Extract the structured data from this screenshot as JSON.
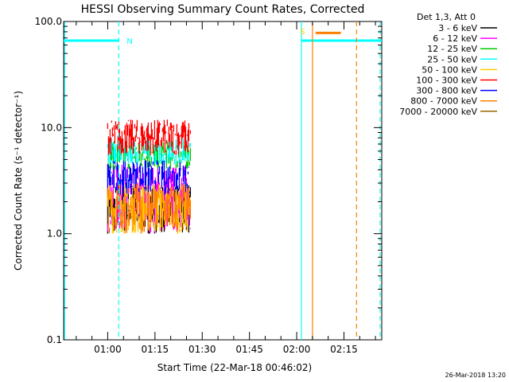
{
  "chart_data": {
    "type": "line",
    "title": "HESSI Observing Summary Count Rates, Corrected",
    "xlabel": "Start Time (22-Mar-18 00:46:02)",
    "ylabel": "Corrected Count Rate (s⁻¹ detector⁻¹)",
    "y_scale": "log",
    "ylim": [
      0.1,
      100.0
    ],
    "xlim_minutes": [
      46.0,
      147.0
    ],
    "y_ticks": [
      {
        "value": 0.1,
        "label": "0.1"
      },
      {
        "value": 1.0,
        "label": "1.0"
      },
      {
        "value": 10.0,
        "label": "10.0"
      },
      {
        "value": 100.0,
        "label": "100.0"
      }
    ],
    "x_ticks": [
      {
        "minute": 60,
        "label": "01:00"
      },
      {
        "minute": 75,
        "label": "01:15"
      },
      {
        "minute": 90,
        "label": "01:30"
      },
      {
        "minute": 105,
        "label": "01:45"
      },
      {
        "minute": 120,
        "label": "02:00"
      },
      {
        "minute": 135,
        "label": "02:15"
      }
    ],
    "legend": {
      "header": "Det 1,3, Att 0",
      "placement": "right",
      "entries": [
        {
          "label": "3 - 6 keV",
          "color": "#000000"
        },
        {
          "label": "6 - 12 keV",
          "color": "#ff00ff"
        },
        {
          "label": "12 - 25 keV",
          "color": "#00cc00"
        },
        {
          "label": "25 - 50 keV",
          "color": "#00ffff"
        },
        {
          "label": "50 - 100 keV",
          "color": "#ffcc00"
        },
        {
          "label": "100 - 300 keV",
          "color": "#ff0000"
        },
        {
          "label": "300 - 800 keV",
          "color": "#0000ff"
        },
        {
          "label": "800 - 7000 keV",
          "color": "#ff8000"
        },
        {
          "label": "7000 - 20000 keV",
          "color": "#996600"
        }
      ]
    },
    "series": [
      {
        "name": "3 - 6 keV",
        "color": "#000000",
        "x_range": [
          60.0,
          86.5
        ],
        "y_range": [
          1.0,
          3.0
        ]
      },
      {
        "name": "6 - 12 keV",
        "color": "#ff00ff",
        "x_range": [
          60.0,
          86.5
        ],
        "y_range": [
          1.0,
          4.5
        ]
      },
      {
        "name": "12 - 25 keV",
        "color": "#00cc00",
        "x_range": [
          60.0,
          86.5
        ],
        "y_range": [
          4.0,
          7.5
        ]
      },
      {
        "name": "25 - 50 keV",
        "color": "#00ffff",
        "x_range": [
          60.0,
          86.5
        ],
        "y_range": [
          4.5,
          8.0
        ]
      },
      {
        "name": "50 - 100 keV",
        "color": "#ffcc00",
        "x_range": [
          60.0,
          86.5
        ],
        "y_range": [
          1.0,
          3.0
        ]
      },
      {
        "name": "100 - 300 keV",
        "color": "#ff0000",
        "x_range": [
          60.0,
          86.5
        ],
        "y_range": [
          5.5,
          12.0
        ]
      },
      {
        "name": "300 - 800 keV",
        "color": "#0000ff",
        "x_range": [
          60.0,
          86.5
        ],
        "y_range": [
          2.3,
          5.0
        ]
      },
      {
        "name": "800 - 7000 keV",
        "color": "#ff8000",
        "x_range": [
          60.0,
          86.5
        ],
        "y_range": [
          1.0,
          3.0
        ]
      }
    ],
    "annotations": [
      {
        "text": "N",
        "minute": 65.5,
        "y": 65.0,
        "color": "#00ffff"
      },
      {
        "text": "S",
        "minute": 120.5,
        "y": 80.0,
        "color": "#ffcc00"
      }
    ],
    "level_lines": [
      {
        "x_range": [
          46.0,
          63.5
        ],
        "y": 66.0,
        "color": "#00ffff"
      },
      {
        "x_range": [
          121.5,
          147.0
        ],
        "y": 66.0,
        "color": "#00ffff"
      },
      {
        "x_range": [
          126.0,
          134.0
        ],
        "y": 78.0,
        "color": "#ff8000"
      }
    ],
    "vertical_lines": [
      {
        "minute": 46.3,
        "style": "solid",
        "color": "#00ffff"
      },
      {
        "minute": 63.5,
        "style": "dashed",
        "color": "#00ffff"
      },
      {
        "minute": 121.5,
        "style": "solid",
        "color": "#00ffff"
      },
      {
        "minute": 125.0,
        "style": "solid",
        "color": "#ff8000"
      },
      {
        "minute": 139.0,
        "style": "dashed",
        "color": "#ff8000"
      },
      {
        "minute": 146.5,
        "style": "dashed",
        "color": "#00ffff"
      }
    ]
  },
  "timestamp": "26-Mar-2018 13:20"
}
